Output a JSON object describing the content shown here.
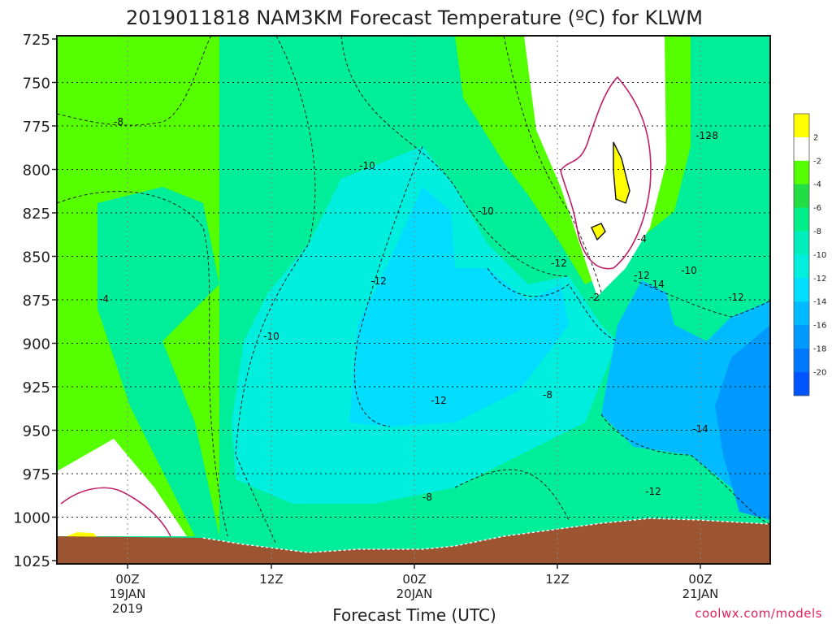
{
  "chart_data": {
    "type": "heatmap",
    "title": "2019011818 NAM3KM Forecast Temperature (ºC) for KLWM",
    "xlabel": "Forecast Time (UTC)",
    "ylabel": "",
    "y_ticks": [
      "725",
      "750",
      "775",
      "800",
      "825",
      "850",
      "875",
      "900",
      "925",
      "950",
      "975",
      "1000",
      "1025"
    ],
    "y_range_hpa": [
      725,
      1025
    ],
    "x_ticks": [
      {
        "hour": "00Z",
        "date": "19JAN",
        "year": "2019"
      },
      {
        "hour": "12Z",
        "date": "",
        "year": ""
      },
      {
        "hour": "00Z",
        "date": "20JAN",
        "year": ""
      },
      {
        "hour": "12Z",
        "date": "",
        "year": ""
      },
      {
        "hour": "00Z",
        "date": "21JAN",
        "year": ""
      }
    ],
    "colorbar": {
      "levels": [
        "2",
        "-2",
        "-4",
        "-6",
        "-8",
        "-10",
        "-12",
        "-14",
        "-16",
        "-18",
        "-20"
      ],
      "colors": [
        "#ffff00",
        "#ffffff",
        "#55ff00",
        "#22dd44",
        "#00ee88",
        "#00eebb",
        "#00eedd",
        "#00ddff",
        "#00bbff",
        "#0099ff",
        "#0077ff",
        "#0055ff"
      ]
    },
    "contour_labels": [
      "-8",
      "-10",
      "-10",
      "-4",
      "-12",
      "-10",
      "-12",
      "-12",
      "-8",
      "-8",
      "-12",
      "-12",
      "-2",
      "-4",
      "-14",
      "-10",
      "-12",
      "-8",
      "-14",
      "-12"
    ],
    "grid": true
  },
  "credit": "coolwx.com/models"
}
